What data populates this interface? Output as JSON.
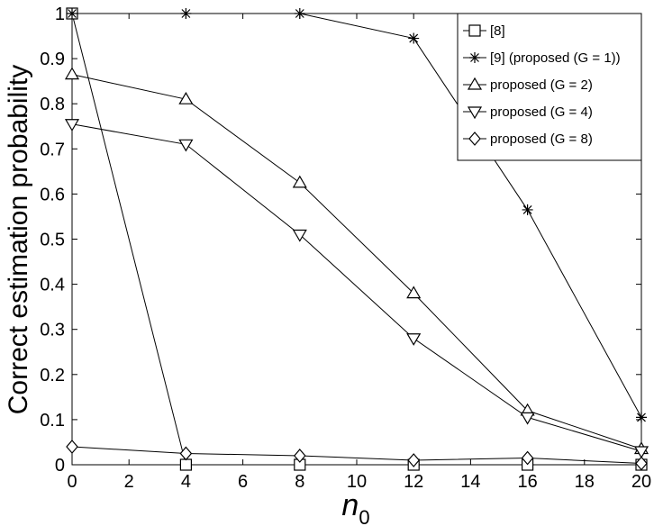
{
  "chart_data": {
    "type": "line",
    "x": [
      0,
      4,
      8,
      12,
      16,
      20
    ],
    "series": [
      {
        "name": "[8]",
        "color": "#000000",
        "marker": "square",
        "values": [
          1,
          0,
          0,
          0,
          0,
          0
        ]
      },
      {
        "name": "[9] (proposed (G = 1))",
        "color": "#000000",
        "marker": "asterisk",
        "values": [
          1,
          1,
          1,
          0.945,
          0.565,
          0.105
        ]
      },
      {
        "name": "proposed (G = 2)",
        "color": "#000000",
        "marker": "triangle-up",
        "values": [
          0.865,
          0.81,
          0.625,
          0.38,
          0.12,
          0.035
        ]
      },
      {
        "name": "proposed (G = 4)",
        "color": "#000000",
        "marker": "triangle-down",
        "values": [
          0.755,
          0.71,
          0.51,
          0.28,
          0.105,
          0.03
        ]
      },
      {
        "name": "proposed (G = 8)",
        "color": "#000000",
        "marker": "diamond",
        "values": [
          0.04,
          0.025,
          0.02,
          0.01,
          0.015,
          0.003
        ]
      }
    ],
    "x_label": {
      "base": "n",
      "sub": "0"
    },
    "y_label": "Correct estimation probability",
    "xlim": [
      0,
      20
    ],
    "xticks": [
      0,
      2,
      4,
      6,
      8,
      10,
      12,
      14,
      16,
      18,
      20
    ],
    "ylim": [
      0,
      1
    ],
    "yticks": [
      0,
      0.1,
      0.2,
      0.3,
      0.4,
      0.5,
      0.6,
      0.7,
      0.8,
      0.9,
      1
    ],
    "legend": "upper right",
    "grid": false
  }
}
